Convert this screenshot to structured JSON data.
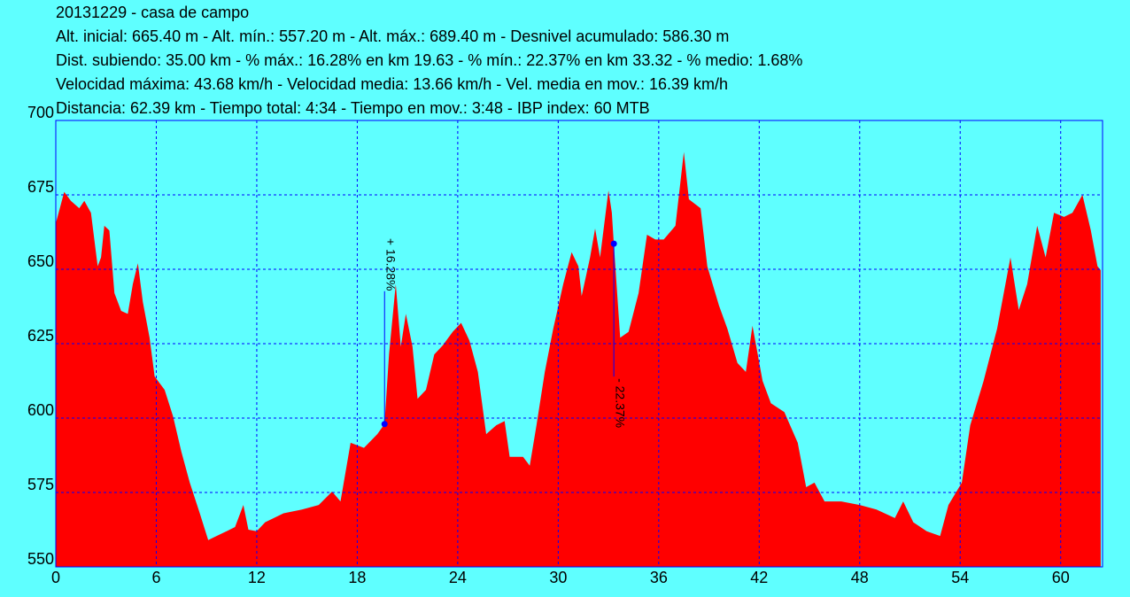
{
  "chart_data": {
    "type": "area",
    "header": [
      "20131229 - casa de campo",
      "Alt. inicial: 665.40 m - Alt. mín.: 557.20 m - Alt. máx.: 689.40 m - Desnivel acumulado: 586.30 m",
      "Dist. subiendo: 35.00 km - % máx.: 16.28% en km 19.63 - % mín.: 22.37% en km 33.32 - % medio: 1.68%",
      "Velocidad máxima: 43.68 km/h - Velocidad media: 13.66 km/h - Vel. media en mov.: 16.39 km/h",
      "Distancia: 62.39 km - Tiempo total: 4:34 - Tiempo en mov.: 3:48 - IBP index: 60 MTB"
    ],
    "color": "#ff0000",
    "x": [
      0,
      0.5,
      0.9,
      1.4,
      1.7,
      2.1,
      2.5,
      2.7,
      2.9,
      3.2,
      3.5,
      3.9,
      4.3,
      4.6,
      4.9,
      5.2,
      5.6,
      5.9,
      6.5,
      7.0,
      7.5,
      8.0,
      8.6,
      9.1,
      9.6,
      10.2,
      10.7,
      11.2,
      11.5,
      12.0,
      12.5,
      13.6,
      14.7,
      15.7,
      16.5,
      17.0,
      17.6,
      18.4,
      19.2,
      19.63,
      19.9,
      20.3,
      20.6,
      20.9,
      21.3,
      21.6,
      22.1,
      22.6,
      23.1,
      23.7,
      24.2,
      24.7,
      25.2,
      25.7,
      26.3,
      26.8,
      27.1,
      27.9,
      28.3,
      28.7,
      29.2,
      29.7,
      30.3,
      30.8,
      31.2,
      31.4,
      31.9,
      32.2,
      32.5,
      33.0,
      33.2,
      33.32,
      33.7,
      34.2,
      34.8,
      35.3,
      35.8,
      36.3,
      37.0,
      37.5,
      37.8,
      38.5,
      38.9,
      39.6,
      40.1,
      40.7,
      41.2,
      41.6,
      42.2,
      42.7,
      43.5,
      44.3,
      44.8,
      45.3,
      45.9,
      46.9,
      48.0,
      49.0,
      50.1,
      50.6,
      51.2,
      52.0,
      52.8,
      53.3,
      54.1,
      54.6,
      55.4,
      56.2,
      57.0,
      57.5,
      58.0,
      58.6,
      59.1,
      59.6,
      60.2,
      60.7,
      61.3,
      61.8,
      62.2,
      62.39
    ],
    "values": [
      665.4,
      676,
      673,
      670.5,
      673,
      669,
      651,
      654,
      664.6,
      663,
      642,
      636,
      635,
      645,
      652,
      639,
      627,
      614,
      609.5,
      600.6,
      588.7,
      578.3,
      568,
      559,
      560.4,
      562,
      563.4,
      570.8,
      562.5,
      562,
      565,
      568,
      569.3,
      570.8,
      575.3,
      572,
      591.7,
      590,
      594.6,
      598,
      621.4,
      645,
      624,
      635,
      624,
      606.5,
      609.5,
      621.4,
      624.4,
      629,
      632,
      626,
      615.5,
      594.6,
      597.6,
      599,
      587,
      587,
      584,
      597.6,
      615.5,
      630,
      645,
      655.7,
      651,
      641,
      654,
      663.7,
      654,
      676.5,
      669,
      658.6,
      627,
      629,
      642,
      661.6,
      660,
      660,
      664.6,
      689.4,
      673.5,
      670.5,
      651,
      637.8,
      630,
      618.5,
      615.5,
      631,
      612.5,
      605,
      602,
      591.7,
      576.8,
      578.3,
      572,
      572,
      570.8,
      569.3,
      566.4,
      572,
      565,
      562,
      560.4,
      570.8,
      578.3,
      597.6,
      612.5,
      630,
      654,
      636.3,
      645,
      664.6,
      654,
      669,
      667.6,
      669,
      675,
      663,
      651,
      649.7
    ],
    "annotations": [
      {
        "label": "+ 16.28%",
        "x": 19.63,
        "y": 598
      },
      {
        "label": "- 22.37%",
        "x": 33.32,
        "y": 658.6
      }
    ],
    "xlim": [
      0,
      62.5
    ],
    "ylim": [
      550,
      700
    ],
    "xticks": [
      0,
      6,
      12,
      18,
      24,
      30,
      36,
      42,
      48,
      54,
      60
    ],
    "yticks": [
      550,
      575,
      600,
      625,
      650,
      675,
      700
    ],
    "grid": true
  }
}
